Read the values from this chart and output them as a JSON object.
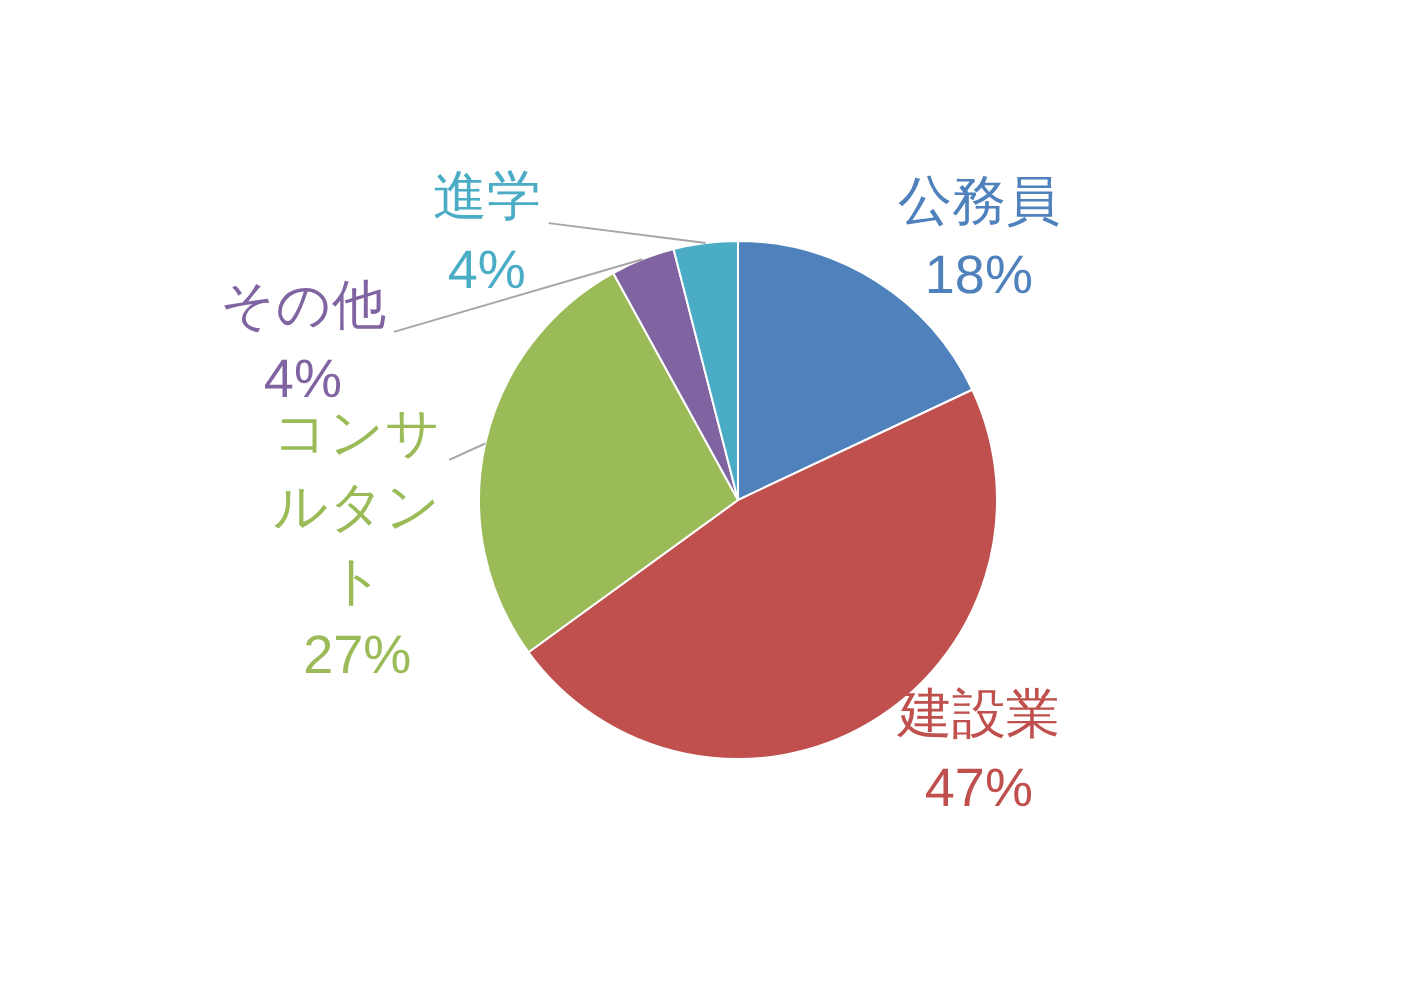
{
  "chart_data": {
    "type": "pie",
    "categories": [
      "公務員",
      "建設業",
      "コンサルタント",
      "その他",
      "進学"
    ],
    "values": [
      18,
      47,
      27,
      4,
      4
    ],
    "colors": [
      "#4f81bd",
      "#c0504d",
      "#9bbb59",
      "#8064a2",
      "#4bacc6"
    ],
    "value_labels": [
      "18%",
      "47%",
      "27%",
      "4%",
      "4%"
    ]
  }
}
